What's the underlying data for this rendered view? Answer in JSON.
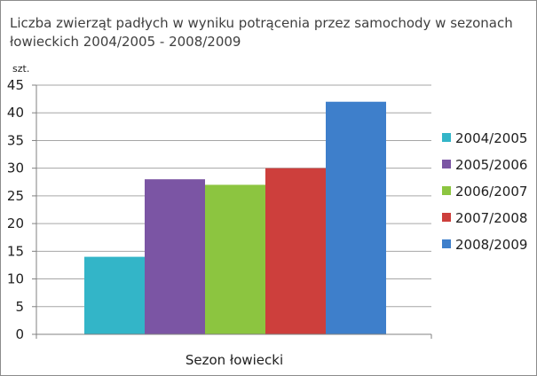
{
  "chart_data": {
    "type": "bar",
    "title": [
      "Liczba zwierząt padłych w wyniku potrącenia przez samochody w sezonach",
      "łowieckich 2004/2005 - 2008/2009"
    ],
    "xlabel": "Sezon łowiecki",
    "ylabel": "szt.",
    "ylim": [
      0,
      45
    ],
    "ytick_step": 5,
    "grid": true,
    "legend_position": "right",
    "series": [
      {
        "name": "2004/2005",
        "values": [
          14
        ],
        "color": "#33b5c8"
      },
      {
        "name": "2005/2006",
        "values": [
          28
        ],
        "color": "#7b55a4"
      },
      {
        "name": "2006/2007",
        "values": [
          27
        ],
        "color": "#8cc540"
      },
      {
        "name": "2007/2008",
        "values": [
          30
        ],
        "color": "#cd3f3c"
      },
      {
        "name": "2008/2009",
        "values": [
          42
        ],
        "color": "#3e7fcb"
      }
    ]
  }
}
